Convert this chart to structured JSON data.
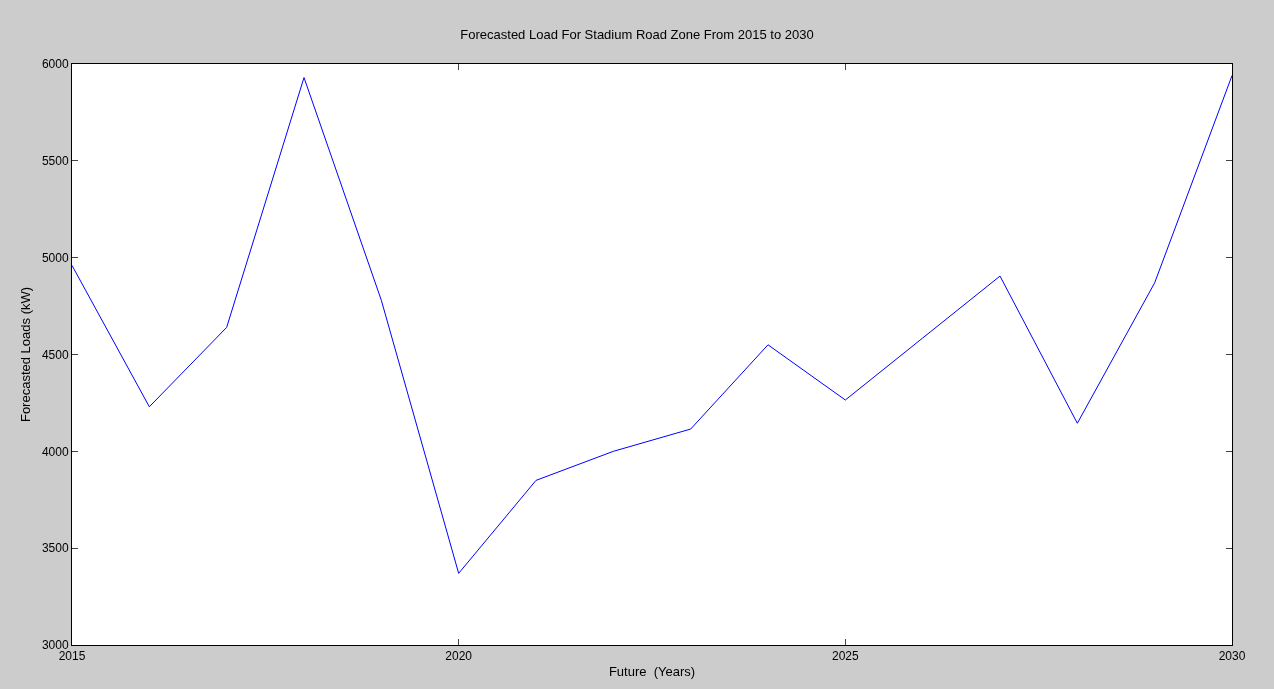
{
  "chart_data": {
    "type": "line",
    "title": "Forecasted Load For Stadium Road Zone From 2015 to 2030",
    "xlabel": "Future  (Years)",
    "ylabel": "Forecasted Loads (kW)",
    "x": [
      2015,
      2016,
      2017,
      2018,
      2019,
      2020,
      2021,
      2022,
      2023,
      2024,
      2025,
      2026,
      2027,
      2028,
      2029,
      2030
    ],
    "series": [
      {
        "color": "#0000ff",
        "values": [
          4960,
          4230,
          4640,
          5930,
          4780,
          3370,
          3850,
          4000,
          4115,
          4550,
          4265,
          4585,
          4905,
          4145,
          4870,
          5940
        ]
      }
    ],
    "xlim": [
      2015,
      2030
    ],
    "xticks": [
      2015,
      2020,
      2025,
      2030
    ],
    "ylim": [
      3000,
      6000
    ],
    "yticks": [
      3000,
      3500,
      4000,
      4500,
      5000,
      5500,
      6000
    ],
    "grid": false,
    "marker": "none",
    "line_style": "solid"
  }
}
